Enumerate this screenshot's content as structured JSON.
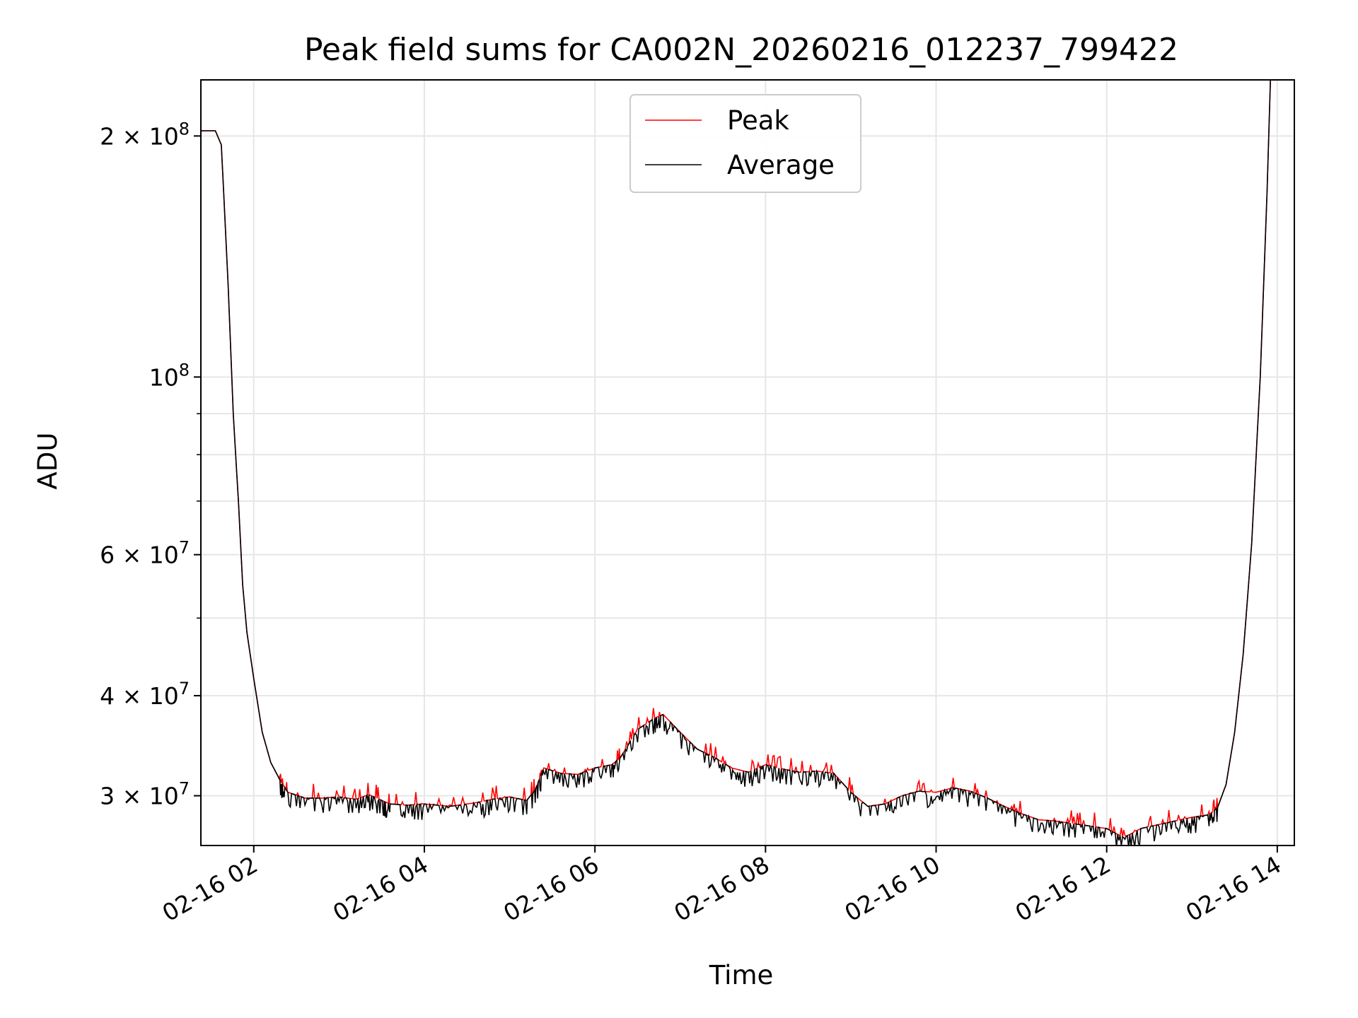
{
  "chart_data": {
    "type": "line",
    "title": "Peak field sums for CA002N_20260216_012237_799422",
    "xlabel": "Time",
    "ylabel": "ADU",
    "yscale": "log",
    "grid": true,
    "legend_position": "upper-center",
    "xlim_hours": [
      1.38,
      14.2
    ],
    "ylim": [
      26000000,
      235000000
    ],
    "x_ticks": [
      {
        "hour": 2,
        "label": "02-16 02"
      },
      {
        "hour": 4,
        "label": "02-16 04"
      },
      {
        "hour": 6,
        "label": "02-16 06"
      },
      {
        "hour": 8,
        "label": "02-16 08"
      },
      {
        "hour": 10,
        "label": "02-16 10"
      },
      {
        "hour": 12,
        "label": "02-16 12"
      },
      {
        "hour": 14,
        "label": "02-16 14"
      }
    ],
    "y_ticks": [
      {
        "value": 30000000,
        "mant": "3",
        "exp": "7"
      },
      {
        "value": 40000000,
        "mant": "4",
        "exp": "7"
      },
      {
        "value": 60000000,
        "mant": "6",
        "exp": "7"
      },
      {
        "value": 100000000,
        "mant": "",
        "exp": "8"
      },
      {
        "value": 200000000,
        "mant": "2",
        "exp": "8"
      }
    ],
    "y_minor": [
      50000000,
      70000000,
      80000000,
      90000000
    ],
    "series": [
      {
        "name": "Peak",
        "color": "#ff0000"
      },
      {
        "name": "Average",
        "color": "#000000"
      }
    ],
    "average_points": [
      [
        1.38,
        203000000
      ],
      [
        1.55,
        203000000
      ],
      [
        1.62,
        195000000
      ],
      [
        1.7,
        130000000
      ],
      [
        1.76,
        90000000
      ],
      [
        1.82,
        70000000
      ],
      [
        1.87,
        55000000
      ],
      [
        1.92,
        48000000
      ],
      [
        2.0,
        42000000
      ],
      [
        2.1,
        36000000
      ],
      [
        2.2,
        33000000
      ],
      [
        2.3,
        31500000
      ],
      [
        2.4,
        30300000
      ],
      [
        2.6,
        29800000
      ],
      [
        2.8,
        29800000
      ],
      [
        3.0,
        29900000
      ],
      [
        3.2,
        29700000
      ],
      [
        3.35,
        30100000
      ],
      [
        3.5,
        29600000
      ],
      [
        3.6,
        29300000
      ],
      [
        3.8,
        29200000
      ],
      [
        4.0,
        29300000
      ],
      [
        4.3,
        29100000
      ],
      [
        4.6,
        29400000
      ],
      [
        4.8,
        29700000
      ],
      [
        5.0,
        29900000
      ],
      [
        5.2,
        29600000
      ],
      [
        5.3,
        30500000
      ],
      [
        5.4,
        32500000
      ],
      [
        5.6,
        32000000
      ],
      [
        5.8,
        31900000
      ],
      [
        6.0,
        32500000
      ],
      [
        6.2,
        32800000
      ],
      [
        6.3,
        33500000
      ],
      [
        6.5,
        36300000
      ],
      [
        6.7,
        37500000
      ],
      [
        6.8,
        37900000
      ],
      [
        7.0,
        36000000
      ],
      [
        7.2,
        34300000
      ],
      [
        7.4,
        33500000
      ],
      [
        7.6,
        32500000
      ],
      [
        7.8,
        32100000
      ],
      [
        8.0,
        32800000
      ],
      [
        8.2,
        32400000
      ],
      [
        8.4,
        32100000
      ],
      [
        8.6,
        32200000
      ],
      [
        8.8,
        32000000
      ],
      [
        9.0,
        30300000
      ],
      [
        9.2,
        29100000
      ],
      [
        9.4,
        29300000
      ],
      [
        9.6,
        30000000
      ],
      [
        9.8,
        30400000
      ],
      [
        10.0,
        30300000
      ],
      [
        10.2,
        30700000
      ],
      [
        10.4,
        30400000
      ],
      [
        10.6,
        29800000
      ],
      [
        10.8,
        29100000
      ],
      [
        11.0,
        28500000
      ],
      [
        11.2,
        28000000
      ],
      [
        11.4,
        27900000
      ],
      [
        11.6,
        27700000
      ],
      [
        11.8,
        27500000
      ],
      [
        12.0,
        27300000
      ],
      [
        12.2,
        26600000
      ],
      [
        12.4,
        27300000
      ],
      [
        12.6,
        27600000
      ],
      [
        12.8,
        27900000
      ],
      [
        13.0,
        28200000
      ],
      [
        13.2,
        28400000
      ],
      [
        13.3,
        29000000
      ],
      [
        13.4,
        31000000
      ],
      [
        13.5,
        36000000
      ],
      [
        13.6,
        45000000
      ],
      [
        13.7,
        62000000
      ],
      [
        13.8,
        100000000
      ],
      [
        13.88,
        170000000
      ],
      [
        13.92,
        235000000
      ]
    ]
  }
}
